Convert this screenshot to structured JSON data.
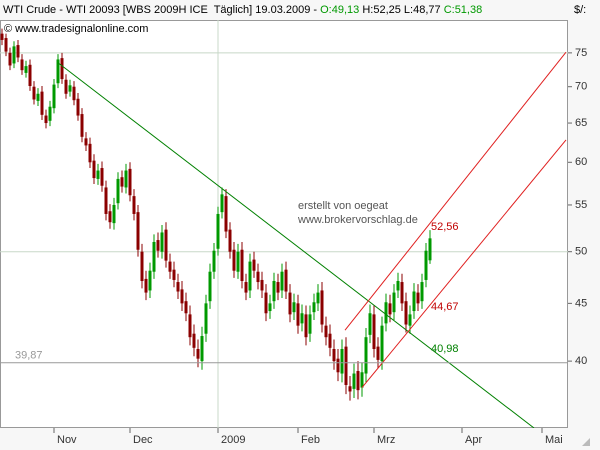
{
  "chart_data": {
    "type": "candlestick",
    "header": {
      "title": "WTI Crude - WTI 20093 [WBS 2009H ICE  Täglich]",
      "date": "19.03.2009 -",
      "open": "O:49,13",
      "high": "H:52,25",
      "low": "L:48,77",
      "close": "C:51,38"
    },
    "copyright": "© www.tradesignalonline.com",
    "notes": [
      "erstellt von oegeat",
      "www.brokervorschlag.de"
    ],
    "unit": "$/:",
    "log_scale": true,
    "up_color": "#009900",
    "down_color": "#8b0000",
    "xlim": [
      -0.5,
      141.5
    ],
    "xticks": [
      {
        "value": 13,
        "label": "Nov"
      },
      {
        "value": 32,
        "label": "Dec"
      },
      {
        "value": 54,
        "label": "2009"
      },
      {
        "value": 74,
        "label": "Feb"
      },
      {
        "value": 93,
        "label": "Mrz"
      },
      {
        "value": 115,
        "label": "Apr"
      },
      {
        "value": 135,
        "label": "Mai"
      }
    ],
    "ylim": [
      34.9,
      80.2
    ],
    "yticks": [
      40,
      45,
      50,
      55,
      60,
      65,
      70,
      75
    ],
    "hlines": [
      75,
      50
    ],
    "vlines": [
      54
    ],
    "open": [
      78.0,
      77.3,
      75.0,
      73.4,
      76.2,
      74.0,
      72.0,
      73.2,
      70.0,
      68.0,
      69.3,
      66.0,
      65.3,
      67.0,
      70.5,
      74.2,
      71.0,
      69.3,
      70.0,
      68.3,
      66.2,
      63.0,
      62.3,
      60.2,
      58.0,
      59.3,
      57.0,
      54.3,
      53.0,
      55.2,
      58.2,
      57.0,
      59.2,
      56.0,
      54.2,
      50.0,
      47.3,
      46.2,
      48.0,
      51.2,
      50.0,
      52.3,
      49.0,
      48.2,
      47.0,
      46.3,
      45.2,
      44.0,
      42.3,
      41.0,
      40.0,
      42.3,
      45.2,
      48.0,
      50.3,
      54.2,
      56.0,
      52.3,
      50.2,
      48.0,
      50.2,
      47.0,
      46.2,
      49.2,
      48.0,
      47.2,
      46.0,
      44.3,
      45.2,
      47.0,
      46.2,
      48.2,
      46.0,
      44.2,
      45.0,
      43.2,
      44.0,
      42.3,
      44.2,
      45.0,
      46.2,
      43.0,
      42.3,
      41.0,
      40.2,
      39.0,
      41.2,
      38.0,
      37.8,
      39.2,
      37.9,
      39.0,
      42.2,
      44.0,
      41.2,
      40.0,
      43.2,
      45.0,
      44.2,
      46.2,
      47.0,
      45.2,
      43.0,
      44.3,
      46.0,
      45.2,
      47.2,
      49.13
    ],
    "high": [
      78.8,
      78.0,
      75.8,
      76.8,
      77.0,
      74.8,
      73.8,
      74.0,
      70.8,
      69.8,
      70.1,
      66.8,
      68.0,
      71.1,
      74.8,
      75.0,
      71.8,
      71.0,
      70.8,
      69.1,
      67.0,
      63.8,
      63.1,
      61.0,
      59.8,
      60.1,
      57.8,
      55.1,
      55.8,
      58.8,
      59.0,
      59.8,
      60.0,
      56.8,
      55.0,
      50.8,
      48.1,
      48.9,
      51.8,
      52.0,
      52.8,
      53.1,
      49.8,
      49.0,
      47.8,
      47.1,
      46.0,
      44.8,
      43.1,
      41.8,
      42.9,
      45.8,
      48.8,
      50.9,
      54.8,
      57.0,
      56.8,
      53.1,
      51.0,
      50.8,
      51.0,
      47.8,
      49.8,
      50.0,
      48.8,
      48.0,
      46.8,
      45.8,
      47.9,
      47.8,
      48.8,
      49.0,
      46.8,
      45.9,
      45.8,
      44.9,
      44.8,
      44.8,
      45.9,
      46.8,
      47.0,
      43.8,
      43.1,
      41.8,
      41.0,
      41.8,
      42.0,
      38.8,
      39.8,
      40.0,
      39.9,
      42.8,
      44.9,
      44.8,
      42.0,
      43.8,
      45.9,
      45.8,
      46.8,
      47.9,
      47.8,
      46.0,
      44.8,
      46.9,
      46.8,
      47.8,
      50.9,
      52.25
    ],
    "low": [
      76.2,
      74.5,
      72.4,
      72.7,
      73.6,
      71.7,
      71.3,
      69.4,
      67.5,
      67.3,
      65.4,
      64.3,
      64.6,
      66.3,
      69.8,
      70.4,
      68.3,
      68.6,
      67.4,
      65.3,
      62.5,
      61.4,
      59.3,
      57.4,
      57.3,
      56.5,
      53.3,
      52.4,
      52.3,
      54.5,
      56.4,
      56.3,
      55.4,
      53.3,
      49.5,
      46.4,
      45.3,
      45.5,
      47.3,
      49.4,
      49.3,
      48.4,
      47.3,
      46.5,
      45.4,
      44.3,
      43.4,
      41.3,
      40.4,
      39.5,
      39.3,
      41.6,
      44.5,
      47.3,
      49.6,
      53.5,
      51.4,
      49.3,
      47.4,
      47.3,
      46.4,
      45.3,
      45.5,
      47.4,
      46.3,
      45.5,
      43.4,
      43.6,
      44.5,
      45.3,
      45.5,
      45.4,
      43.3,
      43.5,
      42.3,
      42.5,
      41.3,
      41.6,
      43.5,
      44.3,
      42.4,
      41.3,
      40.4,
      39.3,
      38.4,
      38.3,
      37.4,
      36.9,
      37.1,
      37.0,
      37.2,
      38.3,
      41.5,
      40.3,
      39.4,
      39.3,
      42.5,
      43.3,
      43.5,
      45.5,
      44.3,
      42.4,
      42.3,
      43.6,
      44.3,
      44.5,
      46.5,
      48.77
    ],
    "close": [
      77.0,
      75.2,
      73.1,
      76.0,
      74.3,
      72.4,
      73.0,
      70.1,
      68.2,
      69.0,
      66.1,
      65.0,
      67.2,
      70.3,
      74.0,
      71.1,
      69.0,
      70.2,
      68.1,
      66.0,
      63.2,
      62.1,
      60.0,
      58.1,
      59.0,
      57.2,
      54.0,
      53.1,
      55.0,
      58.0,
      57.1,
      59.0,
      56.1,
      54.0,
      50.2,
      47.1,
      46.0,
      48.1,
      51.0,
      50.1,
      52.0,
      49.1,
      48.0,
      47.2,
      46.1,
      45.0,
      44.1,
      42.0,
      41.1,
      40.2,
      42.1,
      45.0,
      48.0,
      50.1,
      54.0,
      56.2,
      52.1,
      50.0,
      48.1,
      50.0,
      47.1,
      46.0,
      49.0,
      48.1,
      47.0,
      46.2,
      44.1,
      45.0,
      47.1,
      46.0,
      48.0,
      46.1,
      44.0,
      45.1,
      43.0,
      44.1,
      42.0,
      44.0,
      45.1,
      46.0,
      43.1,
      42.0,
      41.1,
      40.0,
      39.1,
      41.0,
      38.1,
      37.6,
      39.0,
      37.7,
      39.1,
      42.0,
      44.1,
      41.0,
      40.1,
      43.0,
      45.1,
      44.0,
      46.0,
      47.1,
      45.0,
      43.1,
      44.0,
      46.1,
      45.0,
      47.0,
      50.1,
      51.38
    ],
    "trendlines": [
      {
        "color": "#008000",
        "x": [
          14,
          133
        ],
        "y": [
          73.5,
          34.9
        ]
      },
      {
        "color": "#e02020",
        "x": [
          85.75,
          141
        ],
        "y": [
          42.6,
          75.1
        ]
      },
      {
        "color": "#e02020",
        "x": [
          90,
          141
        ],
        "y": [
          37.9,
          62.8
        ]
      }
    ],
    "level_labels": [
      {
        "value": 52.56,
        "label": "52,56",
        "color": "#c00000"
      },
      {
        "value": 44.67,
        "label": "44,67",
        "color": "#c00000"
      },
      {
        "value": 40.98,
        "label": "40,98",
        "color": "#008000"
      },
      {
        "value": 39.87,
        "label": "39,87",
        "color": "#999999",
        "line": true
      }
    ]
  }
}
